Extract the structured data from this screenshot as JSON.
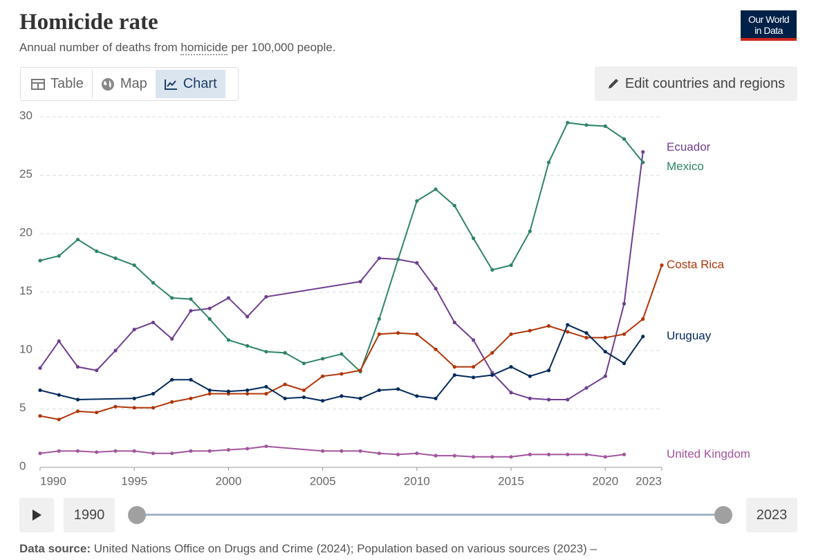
{
  "header": {
    "title": "Homicide rate",
    "subtitle": [
      "Annual number of deaths from ",
      "homicide",
      " per 100,000 people."
    ],
    "logo": [
      "Our World",
      "in Data"
    ]
  },
  "tabs": [
    "Table",
    "Map",
    "Chart"
  ],
  "edit_button": "Edit countries and regions",
  "timeline": {
    "start": "1990",
    "end": "2023"
  },
  "footer": {
    "label": "Data source:",
    "text": "United Nations Office on Drugs and Crime (2024); Population based on various sources (2023) –"
  },
  "chart_data": {
    "type": "line",
    "xlim": [
      1990,
      2023
    ],
    "xticks": [
      1990,
      1995,
      2000,
      2005,
      2010,
      2015,
      2020,
      2023
    ],
    "ylim": [
      0,
      30
    ],
    "yticks": [
      0,
      5,
      10,
      15,
      20,
      25,
      30
    ],
    "grid": true,
    "series": [
      {
        "name": "Ecuador",
        "color": "#6d3e91",
        "x": [
          1990,
          1991,
          1992,
          1993,
          1994,
          1995,
          1996,
          1997,
          1998,
          1999,
          2000,
          2001,
          2002,
          2007,
          2008,
          2009,
          2010,
          2011,
          2012,
          2013,
          2014,
          2015,
          2016,
          2017,
          2018,
          2019,
          2020,
          2021,
          2022
        ],
        "values": [
          8.5,
          10.8,
          8.6,
          8.3,
          10.0,
          11.8,
          12.4,
          11.0,
          13.4,
          13.6,
          14.5,
          12.9,
          14.6,
          15.9,
          17.9,
          17.8,
          17.5,
          15.3,
          12.4,
          10.9,
          8.1,
          6.4,
          5.9,
          5.8,
          5.8,
          6.8,
          7.8,
          14.0,
          27.0
        ]
      },
      {
        "name": "Mexico",
        "color": "#2c8465",
        "x": [
          1990,
          1991,
          1992,
          1993,
          1994,
          1995,
          1996,
          1997,
          1998,
          1999,
          2000,
          2001,
          2002,
          2003,
          2004,
          2005,
          2006,
          2007,
          2008,
          2009,
          2010,
          2011,
          2012,
          2013,
          2014,
          2015,
          2016,
          2017,
          2018,
          2019,
          2020,
          2021,
          2022
        ],
        "values": [
          17.7,
          18.1,
          19.5,
          18.5,
          17.9,
          17.3,
          15.8,
          14.5,
          14.4,
          12.7,
          10.9,
          10.4,
          9.9,
          9.8,
          8.9,
          9.3,
          9.7,
          8.2,
          12.7,
          17.8,
          22.8,
          23.8,
          22.4,
          19.6,
          16.9,
          17.3,
          20.2,
          26.1,
          29.5,
          29.3,
          29.2,
          28.1,
          26.1
        ]
      },
      {
        "name": "Costa Rica",
        "color": "#b13507",
        "x": [
          1990,
          1991,
          1992,
          1993,
          1994,
          1995,
          1996,
          1997,
          1998,
          1999,
          2000,
          2001,
          2002,
          2003,
          2004,
          2005,
          2006,
          2007,
          2008,
          2009,
          2010,
          2011,
          2012,
          2013,
          2014,
          2015,
          2016,
          2017,
          2018,
          2019,
          2020,
          2021,
          2022,
          2023
        ],
        "values": [
          4.4,
          4.1,
          4.8,
          4.7,
          5.2,
          5.1,
          5.1,
          5.6,
          5.9,
          6.3,
          6.3,
          6.3,
          6.3,
          7.1,
          6.6,
          7.8,
          8.0,
          8.3,
          11.4,
          11.5,
          11.4,
          10.1,
          8.6,
          8.6,
          9.8,
          11.4,
          11.7,
          12.1,
          11.6,
          11.1,
          11.1,
          11.4,
          12.7,
          17.3
        ]
      },
      {
        "name": "Uruguay",
        "color": "#00295b",
        "x": [
          1990,
          1991,
          1992,
          1995,
          1996,
          1997,
          1998,
          1999,
          2000,
          2001,
          2002,
          2003,
          2004,
          2005,
          2006,
          2007,
          2008,
          2009,
          2010,
          2011,
          2012,
          2013,
          2014,
          2015,
          2016,
          2017,
          2018,
          2019,
          2020,
          2021,
          2022
        ],
        "values": [
          6.6,
          6.2,
          5.8,
          5.9,
          6.3,
          7.5,
          7.5,
          6.6,
          6.5,
          6.6,
          6.9,
          5.9,
          6.0,
          5.7,
          6.1,
          5.9,
          6.6,
          6.7,
          6.1,
          5.9,
          7.9,
          7.7,
          7.9,
          8.6,
          7.8,
          8.3,
          12.2,
          11.5,
          9.9,
          8.9,
          11.2
        ]
      },
      {
        "name": "United Kingdom",
        "color": "#a2559c",
        "x": [
          1990,
          1991,
          1992,
          1993,
          1994,
          1995,
          1996,
          1997,
          1998,
          1999,
          2000,
          2001,
          2002,
          2005,
          2006,
          2007,
          2008,
          2009,
          2010,
          2011,
          2012,
          2013,
          2014,
          2015,
          2016,
          2017,
          2018,
          2019,
          2020,
          2021
        ],
        "values": [
          1.2,
          1.4,
          1.4,
          1.3,
          1.4,
          1.4,
          1.2,
          1.2,
          1.4,
          1.4,
          1.5,
          1.6,
          1.8,
          1.4,
          1.4,
          1.4,
          1.2,
          1.1,
          1.2,
          1.0,
          1.0,
          0.9,
          0.9,
          0.9,
          1.1,
          1.1,
          1.1,
          1.1,
          0.9,
          1.1
        ]
      }
    ]
  }
}
